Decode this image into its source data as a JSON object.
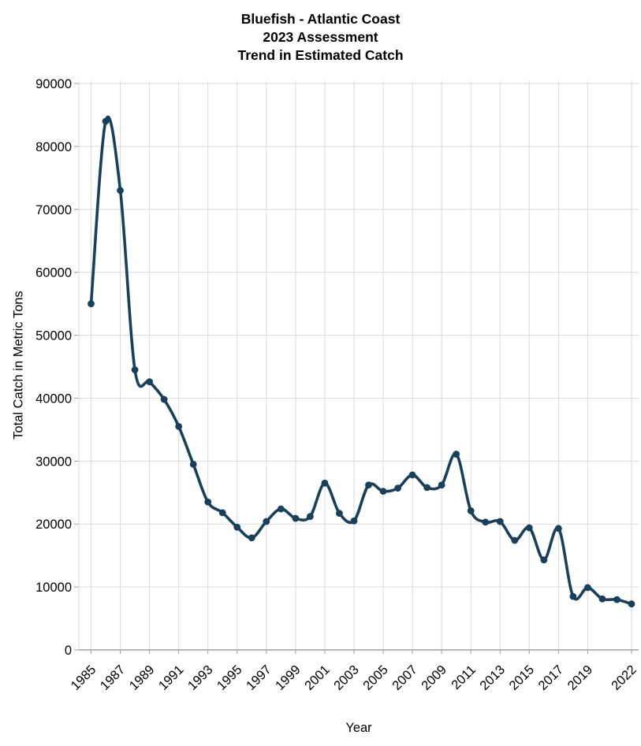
{
  "figure": {
    "title_line1": "Bluefish - Atlantic Coast",
    "title_line2": "2023 Assessment",
    "title_line3": "Trend in Estimated Catch",
    "xlabel": "Year",
    "ylabel": "Total Catch in Metric Tons"
  },
  "chart_data": {
    "type": "line",
    "title": "Bluefish - Atlantic Coast 2023 Assessment Trend in Estimated Catch",
    "xlabel": "Year",
    "ylabel": "Total Catch in Metric Tons",
    "x": [
      1985,
      1986,
      1987,
      1988,
      1989,
      1990,
      1991,
      1992,
      1993,
      1994,
      1995,
      1996,
      1997,
      1998,
      1999,
      2000,
      2001,
      2002,
      2003,
      2004,
      2005,
      2006,
      2007,
      2008,
      2009,
      2010,
      2011,
      2012,
      2013,
      2014,
      2015,
      2016,
      2017,
      2018,
      2019,
      2020,
      2021,
      2022
    ],
    "values": [
      55000,
      84000,
      73000,
      44500,
      42600,
      39800,
      35500,
      29500,
      23500,
      21800,
      19500,
      17800,
      20400,
      22400,
      20900,
      21200,
      26500,
      21700,
      20500,
      26200,
      25200,
      25700,
      27800,
      25800,
      26200,
      31100,
      22100,
      20300,
      20400,
      17400,
      19400,
      14300,
      19300,
      8500,
      9900,
      8100,
      8000,
      7300
    ],
    "xtick_labels": [
      "1985",
      "1987",
      "1989",
      "1991",
      "1993",
      "1995",
      "1997",
      "1999",
      "2001",
      "2003",
      "2005",
      "2007",
      "2009",
      "2011",
      "2013",
      "2015",
      "2017",
      "2019",
      "2022"
    ],
    "yticks": [
      0,
      10000,
      20000,
      30000,
      40000,
      50000,
      60000,
      70000,
      80000,
      90000
    ],
    "ylim": [
      0,
      90000
    ],
    "grid": true,
    "legend_position": "none",
    "line_color": "#17405c",
    "marker": "circle",
    "gridline_color": "#dadada",
    "axis_line_color": "#9e9e9e",
    "tick_label_color": "#000000"
  }
}
